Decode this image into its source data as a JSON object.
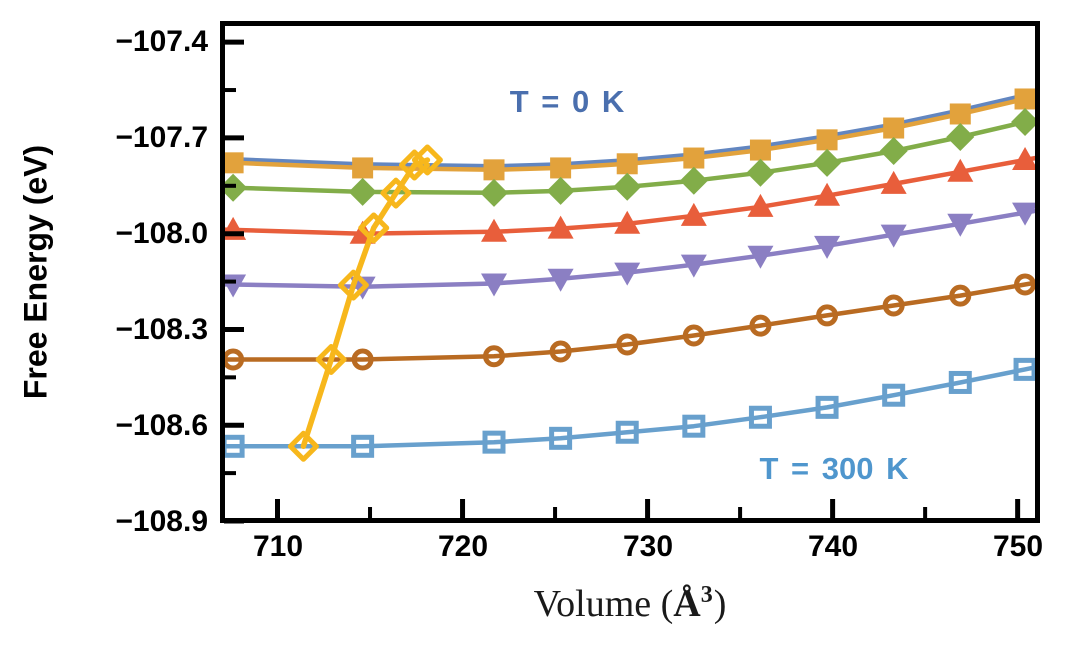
{
  "figure": {
    "ylabel": "Free Energy (eV)",
    "xlabel_prefix": "Volume (",
    "xlabel_symbol": "Å",
    "xlabel_sup": "3",
    "xlabel_suffix": ")",
    "annotation_top": {
      "text": "T = 0 K",
      "color": "#4a6fae"
    },
    "annotation_bottom": {
      "text": "T = 300 K",
      "color": "#4f96cd"
    }
  },
  "chart_data": {
    "type": "line",
    "title": "",
    "xlabel": "Volume (Å³)",
    "ylabel": "Free Energy (eV)",
    "xlim": [
      707,
      751.1
    ],
    "ylim": [
      -108.9,
      -107.34
    ],
    "grid": false,
    "legend": "none",
    "xticks": [
      710,
      720,
      730,
      740,
      750
    ],
    "xtick_labels": [
      "710",
      "720",
      "730",
      "740",
      "750"
    ],
    "xminor_ticks": [
      715,
      725,
      735,
      745
    ],
    "yticks": [
      -107.4,
      -107.7,
      -108.0,
      -108.3,
      -108.6,
      -108.9
    ],
    "ytick_labels": [
      "−107.4",
      "−107.7",
      "−108.0",
      "−108.3",
      "−108.6",
      "−108.9"
    ],
    "yminor_ticks": [
      -107.55,
      -107.85,
      -108.15,
      -108.45,
      -108.75
    ],
    "volumes": [
      707.6,
      714.6,
      721.7,
      725.3,
      728.9,
      732.5,
      736.1,
      739.7,
      743.3,
      746.9,
      750.4
    ],
    "series": [
      {
        "name": "free-energy-T0K",
        "label": "T = 0 K",
        "marker": "none",
        "color": "#6286c0",
        "linewidth": 4,
        "values": [
          -107.766,
          -107.782,
          -107.788,
          -107.782,
          -107.769,
          -107.751,
          -107.726,
          -107.694,
          -107.657,
          -107.613,
          -107.566
        ]
      },
      {
        "name": "free-energy-curve-2",
        "label": "",
        "marker": "square",
        "color": "#e2a23c",
        "linewidth": 4.5,
        "values": [
          -107.778,
          -107.794,
          -107.8,
          -107.794,
          -107.781,
          -107.763,
          -107.738,
          -107.706,
          -107.669,
          -107.625,
          -107.578
        ]
      },
      {
        "name": "free-energy-curve-3",
        "label": "",
        "marker": "diamond",
        "color": "#82ad49",
        "linewidth": 4.5,
        "values": [
          -107.856,
          -107.869,
          -107.872,
          -107.866,
          -107.853,
          -107.834,
          -107.809,
          -107.778,
          -107.741,
          -107.697,
          -107.65
        ]
      },
      {
        "name": "free-energy-curve-4",
        "label": "",
        "marker": "triangle-up",
        "color": "#e85e3b",
        "linewidth": 4.5,
        "values": [
          -107.988,
          -108.0,
          -107.994,
          -107.984,
          -107.969,
          -107.944,
          -107.916,
          -107.881,
          -107.844,
          -107.806,
          -107.769
        ]
      },
      {
        "name": "free-energy-curve-5",
        "label": "",
        "marker": "triangle-down",
        "color": "#8b7fc3",
        "linewidth": 4.5,
        "values": [
          -108.159,
          -108.166,
          -108.156,
          -108.141,
          -108.122,
          -108.097,
          -108.069,
          -108.038,
          -108.003,
          -107.969,
          -107.934
        ]
      },
      {
        "name": "free-energy-curve-6",
        "label": "",
        "marker": "circle-open",
        "color": "#b96b22",
        "linewidth": 4.5,
        "values": [
          -108.394,
          -108.394,
          -108.384,
          -108.369,
          -108.347,
          -108.319,
          -108.288,
          -108.256,
          -108.225,
          -108.194,
          -108.159
        ]
      },
      {
        "name": "free-energy-T300K",
        "label": "T = 300 K",
        "marker": "square-open",
        "color": "#68a0cd",
        "linewidth": 4.5,
        "values": [
          -108.666,
          -108.666,
          -108.653,
          -108.641,
          -108.622,
          -108.603,
          -108.575,
          -108.544,
          -108.506,
          -108.466,
          -108.425
        ]
      }
    ],
    "minimum_locus": {
      "name": "equilibrium-volume-locus",
      "marker": "diamond-open",
      "color": "#f7b71c",
      "linewidth": 5.5,
      "points": [
        [
          711.4,
          -108.666
        ],
        [
          712.9,
          -108.394
        ],
        [
          714.1,
          -108.161
        ],
        [
          715.2,
          -107.982
        ],
        [
          716.4,
          -107.873
        ],
        [
          717.4,
          -107.785
        ],
        [
          718.1,
          -107.769
        ]
      ]
    }
  }
}
